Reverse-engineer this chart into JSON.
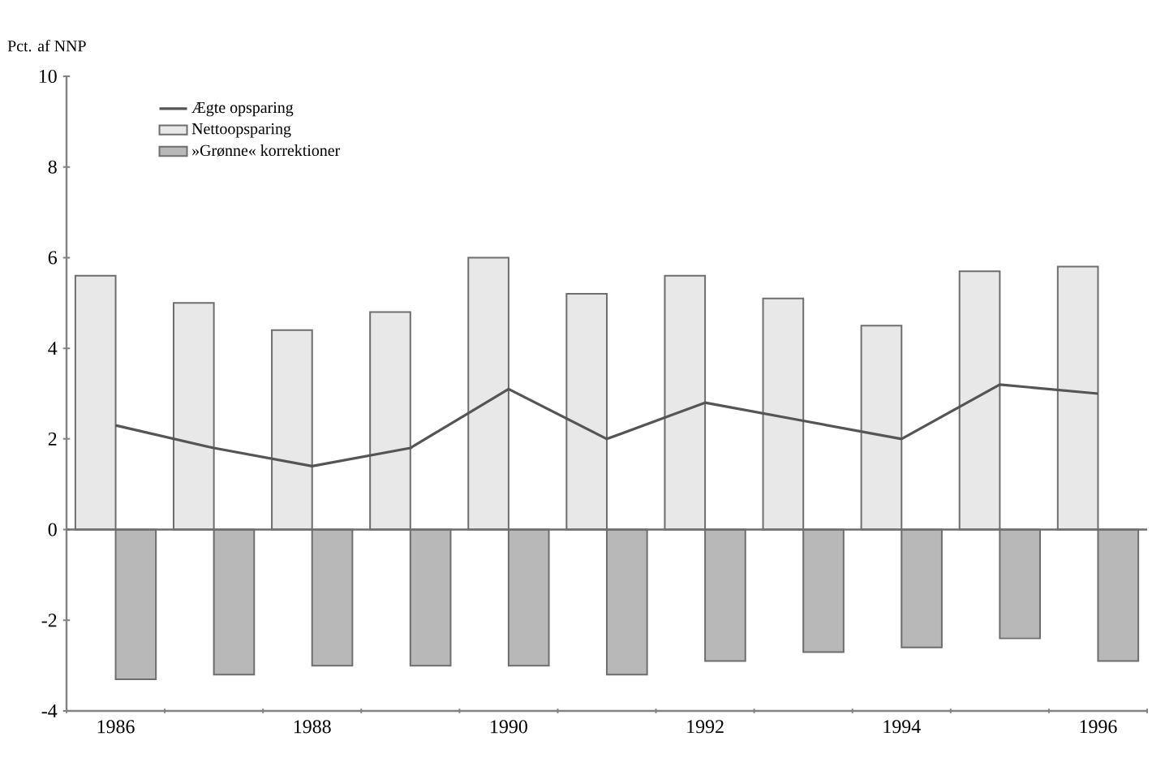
{
  "chart_data": {
    "type": "bar",
    "ylabel": "Pct. af NNP",
    "categories": [
      "1986",
      null,
      "1988",
      null,
      "1990",
      null,
      "1992",
      null,
      "1994",
      null,
      "1996"
    ],
    "series": [
      {
        "name": "Ægte opsparing",
        "type": "line",
        "color": "#555555",
        "values": [
          2.3,
          1.8,
          1.4,
          1.8,
          3.1,
          2.0,
          2.8,
          2.4,
          2.0,
          3.2,
          3.0
        ]
      },
      {
        "name": "Nettoopsparing",
        "color": "#e8e8e8",
        "values": [
          5.6,
          5.0,
          4.4,
          4.8,
          6.0,
          5.2,
          5.6,
          5.1,
          4.5,
          5.7,
          5.8
        ]
      },
      {
        "name": "»Grønne« korrektioner",
        "color": "#b8b8b8",
        "values": [
          -3.3,
          -3.2,
          -3.0,
          -3.0,
          -3.0,
          -3.2,
          -2.9,
          -2.7,
          -2.6,
          -2.4,
          -2.9
        ]
      }
    ],
    "ylim": [
      -4,
      10
    ],
    "yticks": [
      -4,
      -2,
      0,
      2,
      4,
      6,
      8,
      10
    ],
    "ref_lines": [
      {
        "axis": "y",
        "value": 0
      }
    ],
    "legend": "top left",
    "marker": "none"
  }
}
